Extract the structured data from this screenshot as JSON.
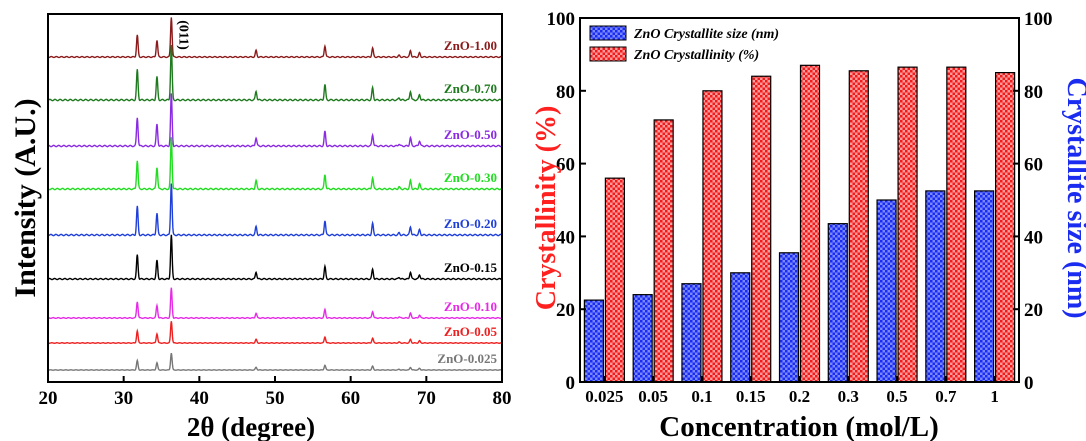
{
  "chart_data": [
    {
      "type": "line",
      "xlabel": "2θ (degree)",
      "ylabel": "Intensity (A.U.)",
      "xlim": [
        20,
        80
      ],
      "xticks": [
        "20",
        "30",
        "40",
        "50",
        "60",
        "70",
        "80"
      ],
      "yticks_shown": false,
      "grid": false,
      "peak_annotation": {
        "label": "(011)",
        "x": 36.3
      },
      "peaks": [
        {
          "x": 31.8,
          "rel": 0.55
        },
        {
          "x": 34.4,
          "rel": 0.42
        },
        {
          "x": 36.3,
          "rel": 1.0
        },
        {
          "x": 47.5,
          "rel": 0.16
        },
        {
          "x": 56.6,
          "rel": 0.28
        },
        {
          "x": 62.9,
          "rel": 0.22
        },
        {
          "x": 66.4,
          "rel": 0.04
        },
        {
          "x": 67.9,
          "rel": 0.16
        },
        {
          "x": 69.1,
          "rel": 0.1
        }
      ],
      "series": [
        {
          "name": "ZnO-1.00",
          "color": "#8b1a1a"
        },
        {
          "name": "ZnO-0.70",
          "color": "#1f7a1f"
        },
        {
          "name": "ZnO-0.50",
          "color": "#8a2be2"
        },
        {
          "name": "ZnO-0.30",
          "color": "#22dd22"
        },
        {
          "name": "ZnO-0.20",
          "color": "#1f3fd9"
        },
        {
          "name": "ZnO-0.15",
          "color": "#000000"
        },
        {
          "name": "ZnO-0.10",
          "color": "#e62be6"
        },
        {
          "name": "ZnO-0.05",
          "color": "#ee2020"
        },
        {
          "name": "ZnO-0.025",
          "color": "#777777"
        }
      ]
    },
    {
      "type": "bar",
      "categories": [
        "0.025",
        "0.05",
        "0.1",
        "0.15",
        "0.2",
        "0.3",
        "0.5",
        "0.7",
        "1"
      ],
      "xlabel": "Concentration (mol/L)",
      "ylabel_left": "Crystallinity (%)",
      "ylabel_right": "Crystallite size (nm)",
      "ylim": [
        0,
        100
      ],
      "yticks": [
        0,
        20,
        40,
        60,
        80,
        100
      ],
      "legend_position": "top-left",
      "series": [
        {
          "name": "ZnO Crystallite size (nm)",
          "color": "#2a3dff",
          "axis": "right",
          "values": [
            22.5,
            24,
            27,
            30,
            35.5,
            43.5,
            50,
            52.5,
            52.5
          ]
        },
        {
          "name": "ZnO Crystallinity (%)",
          "color": "#ff3030",
          "axis": "left",
          "values": [
            56,
            72,
            80,
            84,
            87,
            85.5,
            86.5,
            86.5,
            85
          ]
        }
      ]
    }
  ]
}
